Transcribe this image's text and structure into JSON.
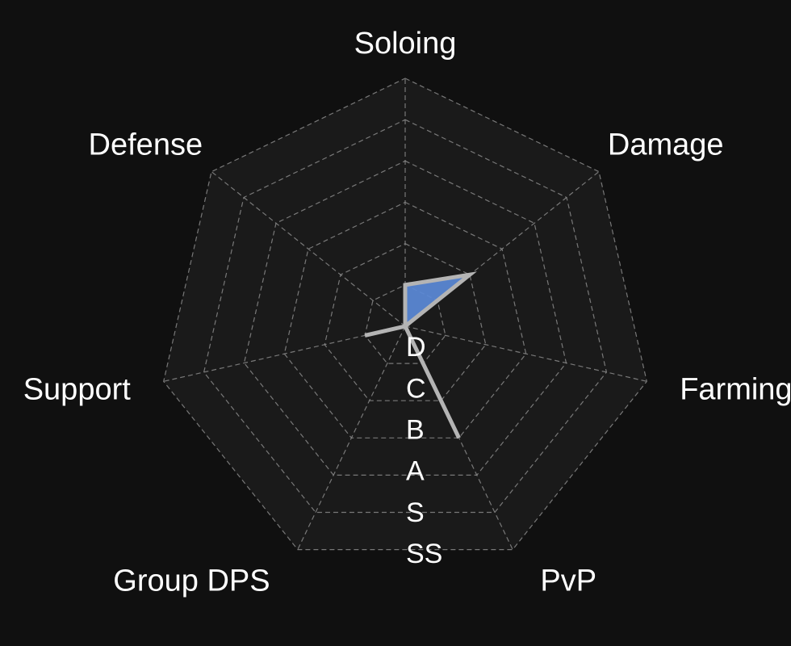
{
  "chart_data": {
    "type": "radar",
    "title": "",
    "axes": [
      "Soloing",
      "Damage",
      "Farming",
      "PvP",
      "Group DPS",
      "Support",
      "Defense"
    ],
    "scale": [
      "D",
      "C",
      "B",
      "A",
      "S",
      "SS"
    ],
    "range": [
      0,
      6
    ],
    "values": [
      1,
      2,
      0,
      3,
      0,
      1,
      0
    ],
    "grid": true,
    "colors": {
      "background": "#101010",
      "plot_background": "#1a1a1a",
      "grid": "#8a8a8a",
      "fill": "#5b8ad8",
      "stroke": "#b4b4b4",
      "text": "#ffffff"
    }
  }
}
